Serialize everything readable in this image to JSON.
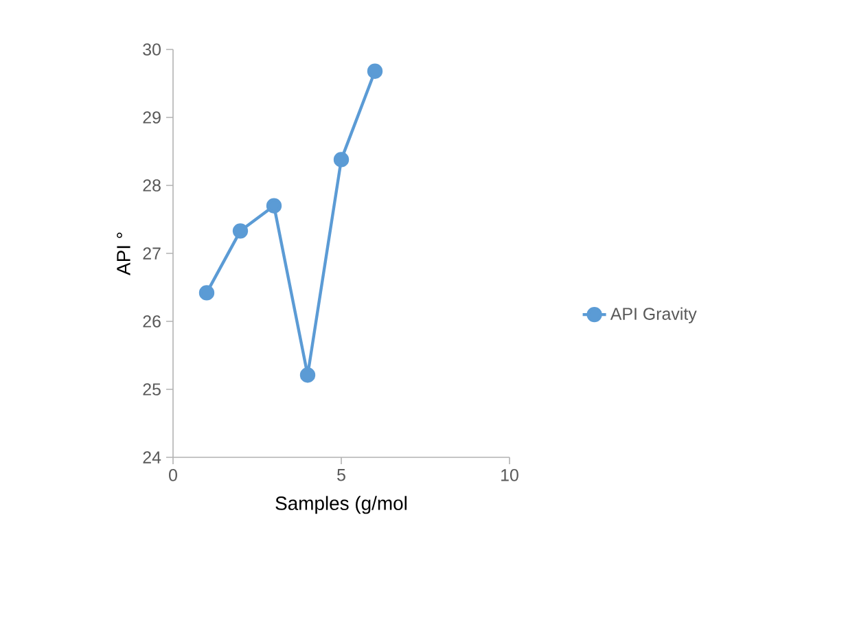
{
  "chart_data": {
    "type": "line",
    "xlabel": "Samples (g/mol",
    "ylabel": "API °",
    "xlim": [
      0,
      10
    ],
    "xticks": [
      0,
      5,
      10
    ],
    "ylim": [
      24,
      30
    ],
    "yticks": [
      24,
      25,
      26,
      27,
      28,
      29,
      30
    ],
    "marker": "circle",
    "line_style": "solid",
    "legend": "right",
    "x": [
      1,
      2,
      3,
      4,
      5,
      6
    ],
    "series": [
      {
        "name": "API Gravity",
        "color": "#5b9bd5",
        "values": [
          26.42,
          27.33,
          27.7,
          25.21,
          28.38,
          29.68
        ]
      }
    ]
  }
}
